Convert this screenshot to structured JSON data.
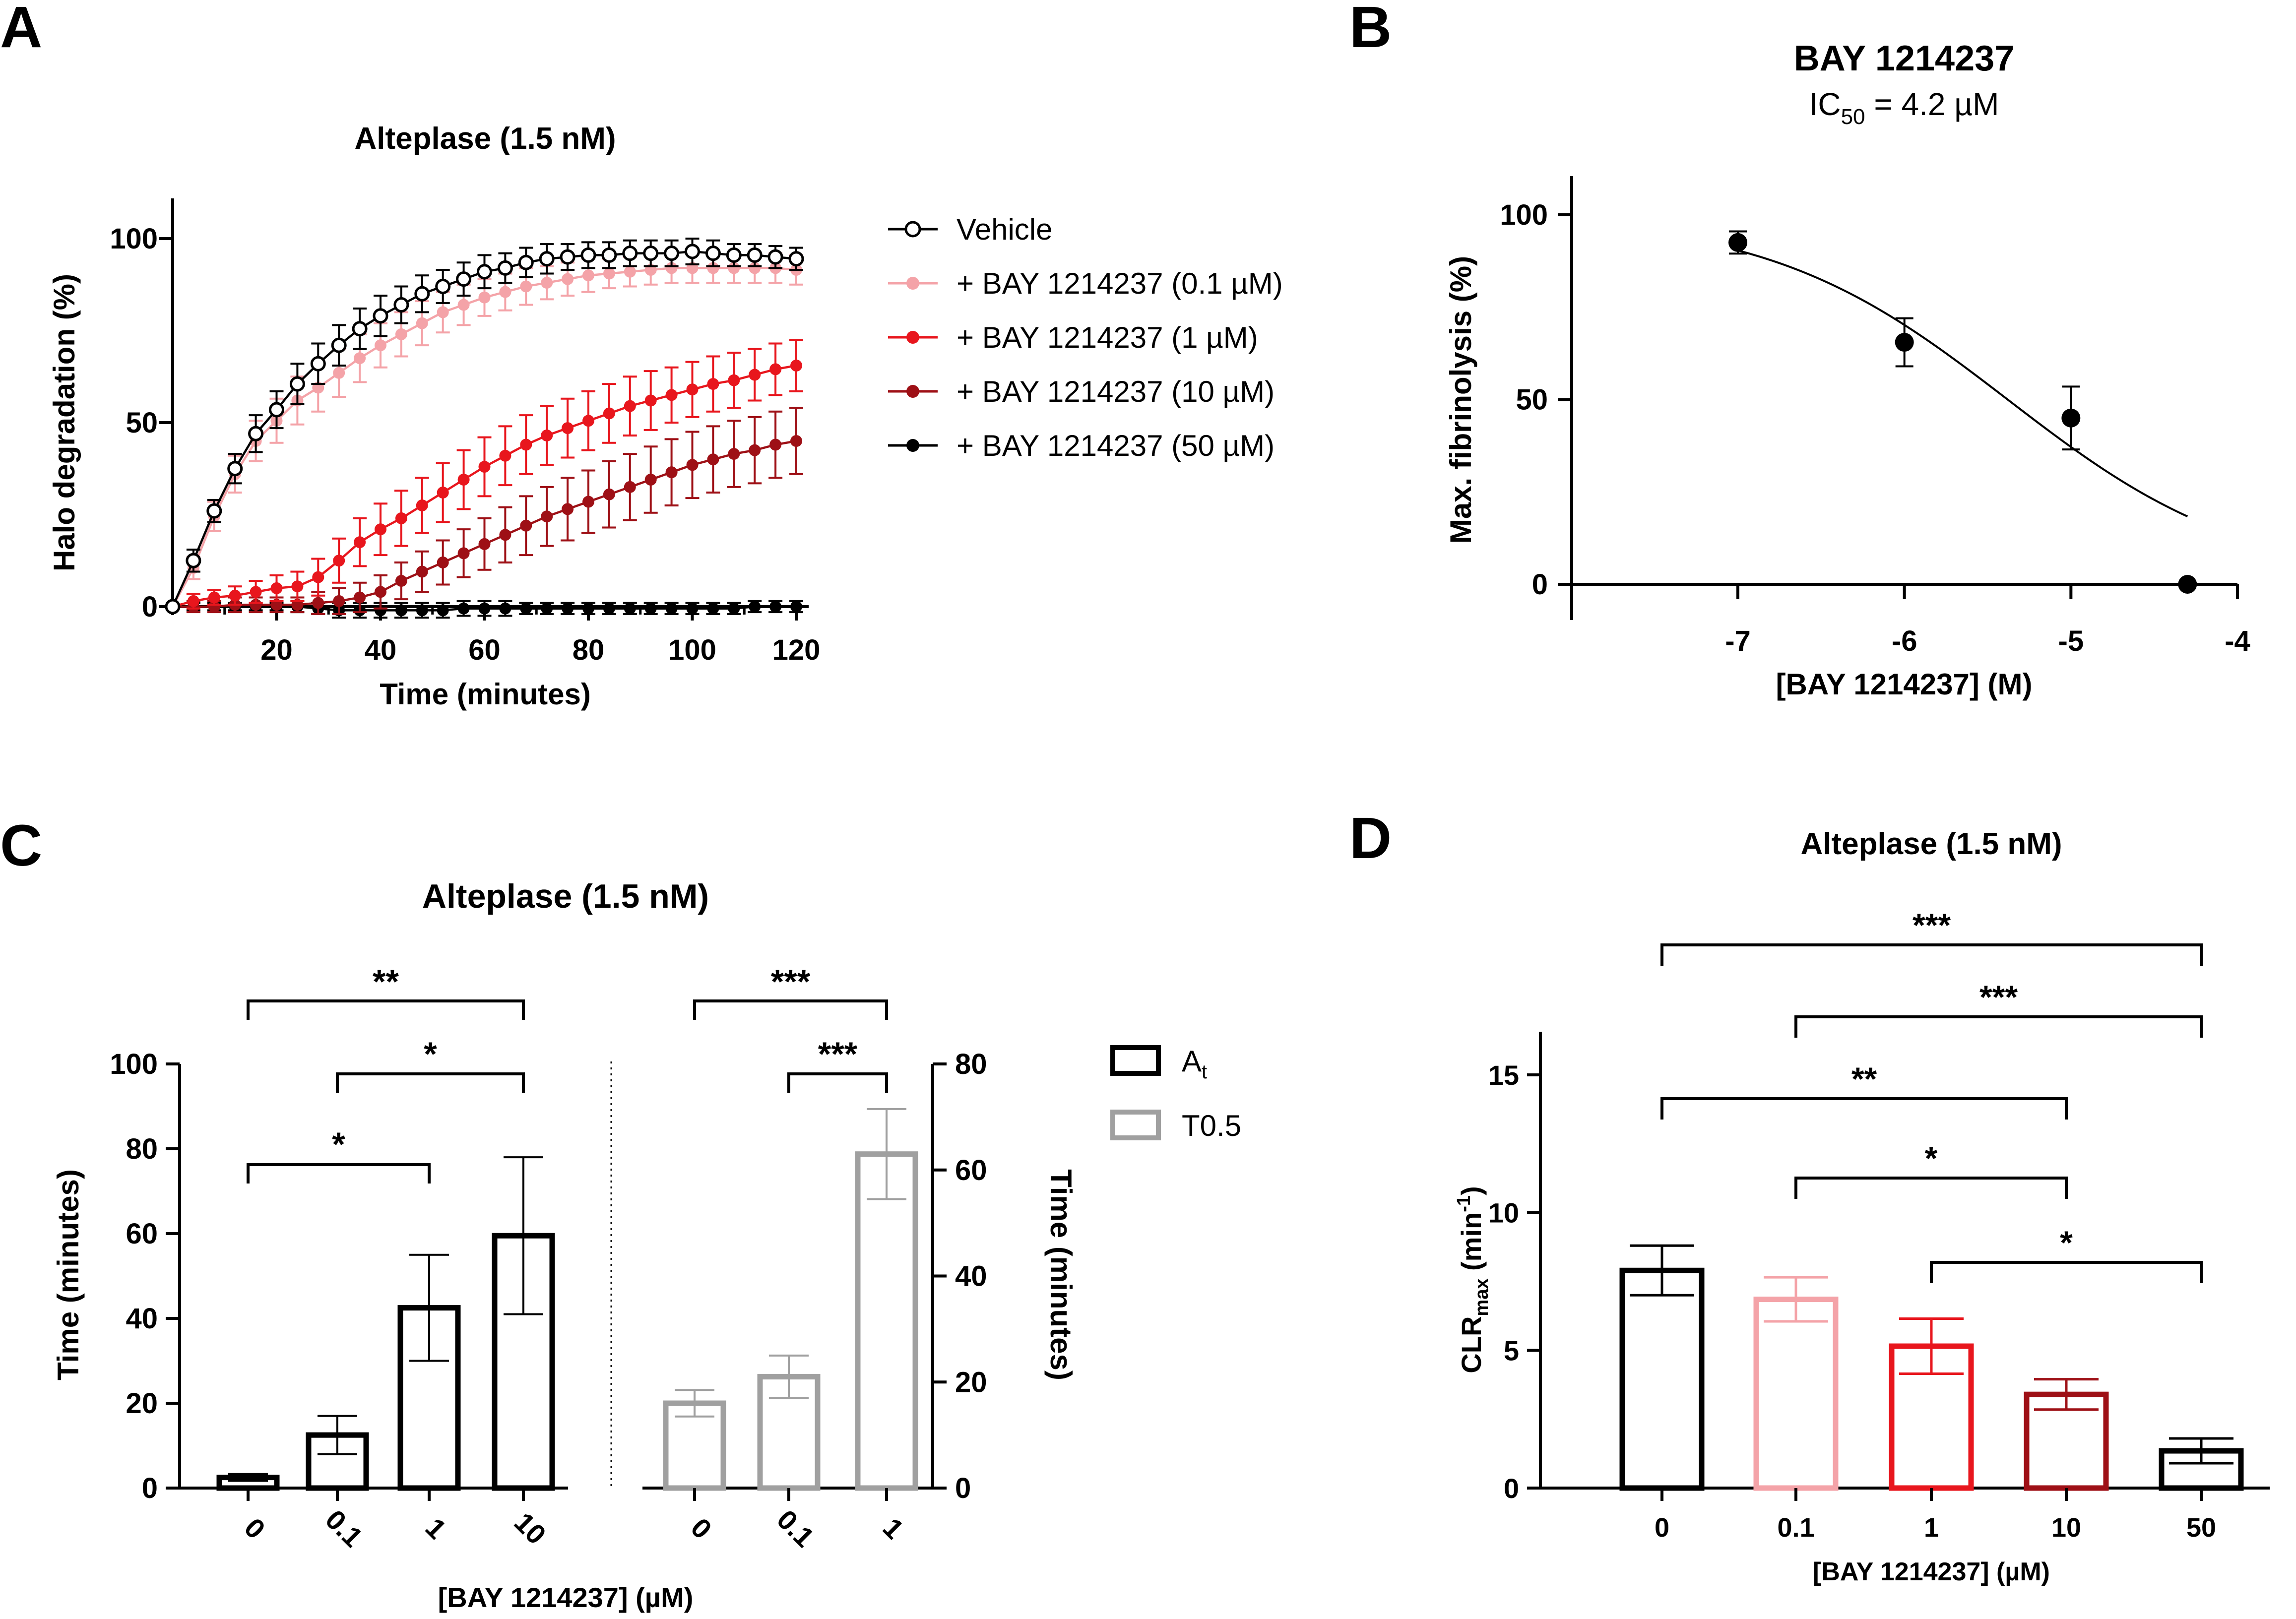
{
  "panels": {
    "A": {
      "letter": "A"
    },
    "B": {
      "letter": "B"
    },
    "C": {
      "letter": "C"
    },
    "D": {
      "letter": "D"
    }
  },
  "chart_data": [
    {
      "id": "A",
      "type": "line",
      "title": "Alteplase (1.5 nM)",
      "xlabel": "Time (minutes)",
      "ylabel": "Halo degradation (%)",
      "xlim": [
        0,
        120
      ],
      "ylim": [
        -5,
        110
      ],
      "xticks": [
        20,
        40,
        60,
        80,
        100,
        120
      ],
      "yticks": [
        0,
        50,
        100
      ],
      "x": [
        0,
        4,
        8,
        12,
        16,
        20,
        24,
        28,
        32,
        36,
        40,
        44,
        48,
        52,
        56,
        60,
        64,
        68,
        72,
        76,
        80,
        84,
        88,
        92,
        96,
        100,
        104,
        108,
        112,
        116,
        120
      ],
      "series": [
        {
          "name": "Vehicle",
          "color": "#000000",
          "marker": "open",
          "values": [
            0,
            12.5,
            26,
            37.5,
            47,
            53.5,
            60.5,
            66,
            71,
            75.5,
            79,
            82,
            85,
            87,
            89,
            91,
            92,
            93.5,
            94.5,
            95,
            95.5,
            95.5,
            96,
            96,
            96,
            96.5,
            96,
            95.5,
            95.5,
            95,
            94.5
          ],
          "errors": [
            0,
            3,
            3,
            4,
            5,
            5,
            5.5,
            5.5,
            5.5,
            5.5,
            5.5,
            5,
            5,
            4.5,
            4.5,
            4.5,
            4,
            4,
            4,
            3.5,
            3.5,
            3.5,
            3.5,
            3.5,
            3.5,
            3.5,
            3.5,
            3,
            3,
            3,
            3
          ]
        },
        {
          "name": "+ BAY 1214237 (0.1 µM)",
          "color": "#f4a3a8",
          "marker": "filled",
          "values": [
            0,
            10.5,
            24.5,
            36,
            45,
            50.5,
            56,
            59.5,
            63.5,
            67.5,
            71,
            74,
            77,
            80,
            82,
            84,
            85.5,
            87,
            88,
            89,
            90,
            90.5,
            91,
            91.5,
            92,
            92,
            92,
            92,
            92,
            92,
            91.5
          ],
          "errors": [
            0,
            3,
            4,
            5,
            5.5,
            6,
            6.5,
            6.5,
            6.5,
            6.5,
            6,
            6,
            6,
            5.5,
            5.5,
            5,
            5,
            5,
            4.5,
            4.5,
            4.5,
            4,
            4,
            4,
            4,
            4,
            4,
            4,
            4,
            4,
            4
          ]
        },
        {
          "name": "+ BAY 1214237 (1 µM)",
          "color": "#e8161d",
          "marker": "filled",
          "values": [
            0,
            1.5,
            2.5,
            3,
            4,
            5,
            5.5,
            8,
            12.5,
            17.5,
            21,
            24,
            27.5,
            31,
            34.5,
            38,
            41,
            44,
            46.5,
            48.5,
            50.5,
            52.5,
            54.5,
            56,
            57.5,
            59,
            60.5,
            61.5,
            63,
            64.5,
            65.5
          ],
          "errors": [
            0,
            2,
            2,
            2.5,
            3,
            3.5,
            4,
            5,
            6,
            6.5,
            7,
            7.5,
            7.5,
            8,
            8,
            8,
            8,
            8,
            8,
            8,
            8,
            8,
            8,
            8,
            7.5,
            7.5,
            7.5,
            7.5,
            7,
            7,
            7
          ]
        },
        {
          "name": "+ BAY 1214237 (10 µM)",
          "color": "#9e1016",
          "marker": "filled",
          "values": [
            0,
            0,
            0,
            0.5,
            0.5,
            0.5,
            0.5,
            1,
            1.5,
            2.5,
            4,
            7,
            9.5,
            12,
            14.5,
            17,
            19.5,
            22,
            24.5,
            26.5,
            28.5,
            30.5,
            32.5,
            34.5,
            36.5,
            38.5,
            40,
            41.5,
            42.5,
            44,
            45
          ],
          "errors": [
            0,
            1.5,
            1.5,
            2,
            2,
            2,
            2,
            3,
            3.5,
            4,
            4.5,
            5,
            5.5,
            6,
            6.5,
            7,
            7.5,
            8,
            8,
            8.5,
            8.5,
            9,
            9,
            9,
            9,
            9,
            9,
            9,
            9,
            9,
            9
          ]
        },
        {
          "name": "+ BAY 1214237 (50 µM)",
          "color": "#000000",
          "marker": "filled",
          "values": [
            0,
            0,
            0,
            0,
            0,
            0,
            0,
            -0.5,
            -1,
            -1,
            -1,
            -1,
            -1,
            -1,
            -0.5,
            -0.5,
            -0.5,
            -0.5,
            -0.5,
            -0.5,
            -0.5,
            -0.5,
            -0.5,
            -0.5,
            -0.5,
            -0.5,
            -0.5,
            -0.5,
            0,
            0,
            0
          ],
          "errors": [
            0,
            1,
            1,
            1,
            1,
            1,
            1.5,
            1.5,
            2,
            2,
            2,
            2,
            2,
            2,
            2,
            2,
            2,
            1.5,
            1.5,
            1.5,
            1.5,
            1.5,
            1.5,
            1.5,
            1.5,
            1.5,
            1.5,
            1.5,
            1.5,
            1.5,
            1.5
          ]
        }
      ]
    },
    {
      "id": "B",
      "type": "scatter",
      "title": "BAY 1214237",
      "subtitle": {
        "prefix": "IC",
        "sub": "50",
        "suffix": " =  4.2 µM"
      },
      "xlabel": "[BAY 1214237] (M)",
      "ylabel": "Max. fibrinolysis (%)",
      "xlim": [
        -8,
        -4
      ],
      "ylim": [
        -10,
        110
      ],
      "xticks": [
        -7,
        -6,
        -5,
        -4
      ],
      "yticks": [
        0,
        50,
        100
      ],
      "points": [
        {
          "x": -7,
          "y": 92.5,
          "err": 3
        },
        {
          "x": -6,
          "y": 65.5,
          "err": 6.5
        },
        {
          "x": -5,
          "y": 45,
          "err": 8.5
        },
        {
          "x": -4.3,
          "y": 0,
          "err": 0
        }
      ],
      "fit": {
        "top": 100,
        "bottom": 0,
        "log_ic50": -5.38,
        "hill": 0.6,
        "x_from": -7,
        "x_to": -4.3
      }
    },
    {
      "id": "C",
      "type": "bar",
      "title": "Alteplase (1.5 nM)",
      "xlabel": "[BAY 1214237] (µM)",
      "ylabel_left": "Time (minutes)",
      "ylabel_right": "Time (minutes)",
      "ylim_left": [
        0,
        100
      ],
      "ylim_right": [
        0,
        80
      ],
      "yticks_left": [
        0,
        20,
        40,
        60,
        80,
        100
      ],
      "yticks_right": [
        0,
        20,
        40,
        60,
        80
      ],
      "legend": [
        {
          "label": "A",
          "sub": "t",
          "color": "#000000"
        },
        {
          "label": "T0.5",
          "sub": "",
          "color": "#a0a0a0"
        }
      ],
      "groups": [
        {
          "name": "At",
          "axis": "left",
          "color": "#000000",
          "categories": [
            "0",
            "0.1",
            "1",
            "10"
          ],
          "values": [
            2.5,
            12.5,
            42.5,
            59.5
          ],
          "errors": [
            0.8,
            4.5,
            12.5,
            18.5
          ]
        },
        {
          "name": "T0.5",
          "axis": "right",
          "color": "#a0a0a0",
          "categories": [
            "0",
            "0.1",
            "1"
          ],
          "values": [
            16,
            21,
            63
          ],
          "errors": [
            2.5,
            4,
            8.5
          ]
        }
      ],
      "significance": [
        {
          "group": "At",
          "from": 0,
          "to": 3,
          "label": "**"
        },
        {
          "group": "At",
          "from": 1,
          "to": 3,
          "label": "*"
        },
        {
          "group": "At",
          "from": 0,
          "to": 2,
          "label": "*"
        },
        {
          "group": "T0.5",
          "from": 0,
          "to": 2,
          "label": "***"
        },
        {
          "group": "T0.5",
          "from": 1,
          "to": 2,
          "label": "***"
        }
      ]
    },
    {
      "id": "D",
      "type": "bar",
      "title": "Alteplase (1.5 nM)",
      "xlabel": "[BAY 1214237] (µM)",
      "ylabel": {
        "prefix": "CLR",
        "sub": "max",
        "mid": " (min",
        "sup": "-1",
        "suffix": ")"
      },
      "ylim": [
        0,
        16
      ],
      "yticks": [
        0,
        5,
        10,
        15
      ],
      "categories": [
        "0",
        "0.1",
        "1",
        "10",
        "50"
      ],
      "values": [
        7.9,
        6.85,
        5.15,
        3.4,
        1.35
      ],
      "errors": [
        0.9,
        0.8,
        1.0,
        0.55,
        0.45
      ],
      "colors": [
        "#000000",
        "#f4a3a8",
        "#e8161d",
        "#9e1016",
        "#000000"
      ],
      "significance": [
        {
          "from": 0,
          "to": 4,
          "label": "***"
        },
        {
          "from": 1,
          "to": 4,
          "label": "***"
        },
        {
          "from": 0,
          "to": 3,
          "label": "**"
        },
        {
          "from": 1,
          "to": 3,
          "label": "*"
        },
        {
          "from": 2,
          "to": 4,
          "label": "*"
        }
      ]
    }
  ]
}
